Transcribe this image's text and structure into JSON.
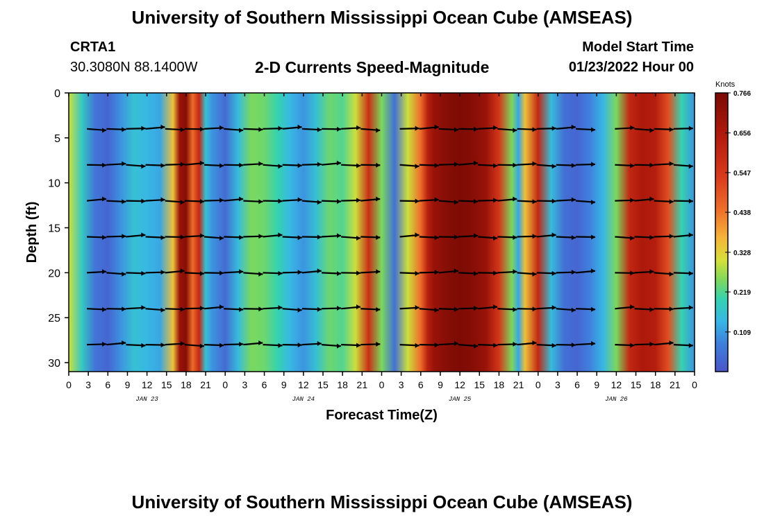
{
  "header": {
    "title": "University of Southern Mississippi Ocean Cube (AMSEAS)",
    "station": "CRTA1",
    "coords": "30.3080N  88.1400W",
    "subtitle": "2-D Currents Speed-Magnitude",
    "start_label": "Model Start Time",
    "start_time": "01/23/2022 Hour 00"
  },
  "footer": {
    "title": "University of Southern Mississippi Ocean Cube (AMSEAS)"
  },
  "chart_data": {
    "type": "heatmap",
    "title": "2-D Currents Speed-Magnitude",
    "xlabel": "Forecast Time(Z)",
    "ylabel": "Depth (ft)",
    "x_unit": "hours since 01/23/2022 00Z",
    "xlim": [
      0,
      96
    ],
    "ylim": [
      31,
      0
    ],
    "x_tick_hours": [
      0,
      3,
      6,
      9,
      12,
      15,
      18,
      21,
      24,
      27,
      30,
      33,
      36,
      39,
      42,
      45,
      48,
      51,
      54,
      57,
      60,
      63,
      66,
      69,
      72,
      75,
      78,
      81,
      84,
      87,
      90,
      93,
      96
    ],
    "x_tick_labels": [
      "0",
      "3",
      "6",
      "9",
      "12",
      "15",
      "18",
      "21",
      "0",
      "3",
      "6",
      "9",
      "12",
      "15",
      "18",
      "21",
      "0",
      "3",
      "6",
      "9",
      "12",
      "15",
      "18",
      "21",
      "0",
      "3",
      "6",
      "9",
      "12",
      "15",
      "18",
      "21",
      "0"
    ],
    "day_labels": [
      {
        "hour": 12,
        "label": "JAN 23"
      },
      {
        "hour": 36,
        "label": "JAN 24"
      },
      {
        "hour": 60,
        "label": "JAN 25"
      },
      {
        "hour": 84,
        "label": "JAN 26"
      }
    ],
    "y_ticks": [
      0,
      5,
      10,
      15,
      20,
      25,
      30
    ],
    "colorbar": {
      "unit": "Knots",
      "min": 0.0,
      "max": 0.766,
      "tick_values": [
        0.109,
        0.219,
        0.328,
        0.438,
        0.547,
        0.656,
        0.766
      ],
      "tick_labels": [
        "0.109",
        "0.219",
        "0.328",
        "0.438",
        "0.547",
        "0.656",
        "0.766"
      ]
    },
    "speed_profile": {
      "hours": [
        0,
        2,
        4,
        6,
        8,
        10,
        12,
        14,
        16,
        17,
        18,
        19,
        20,
        21,
        22,
        24,
        26,
        28,
        30,
        32,
        34,
        36,
        38,
        40,
        42,
        44,
        46,
        48,
        50,
        52,
        54,
        55,
        56,
        58,
        60,
        62,
        64,
        66,
        68,
        69,
        70,
        72,
        74,
        76,
        78,
        80,
        82,
        84,
        86,
        88,
        90,
        92,
        94,
        96
      ],
      "knots": [
        0.3,
        0.18,
        0.06,
        0.03,
        0.1,
        0.16,
        0.14,
        0.12,
        0.35,
        0.7,
        0.74,
        0.45,
        0.6,
        0.16,
        0.1,
        0.04,
        0.15,
        0.25,
        0.24,
        0.2,
        0.14,
        0.1,
        0.16,
        0.24,
        0.22,
        0.3,
        0.58,
        0.25,
        0.05,
        0.3,
        0.45,
        0.62,
        0.7,
        0.74,
        0.76,
        0.74,
        0.7,
        0.55,
        0.25,
        0.12,
        0.35,
        0.6,
        0.15,
        0.05,
        0.03,
        0.08,
        0.14,
        0.25,
        0.6,
        0.66,
        0.64,
        0.5,
        0.2,
        0.1
      ]
    },
    "vector_depths_ft": [
      4,
      8,
      12,
      16,
      20,
      24,
      28
    ]
  }
}
